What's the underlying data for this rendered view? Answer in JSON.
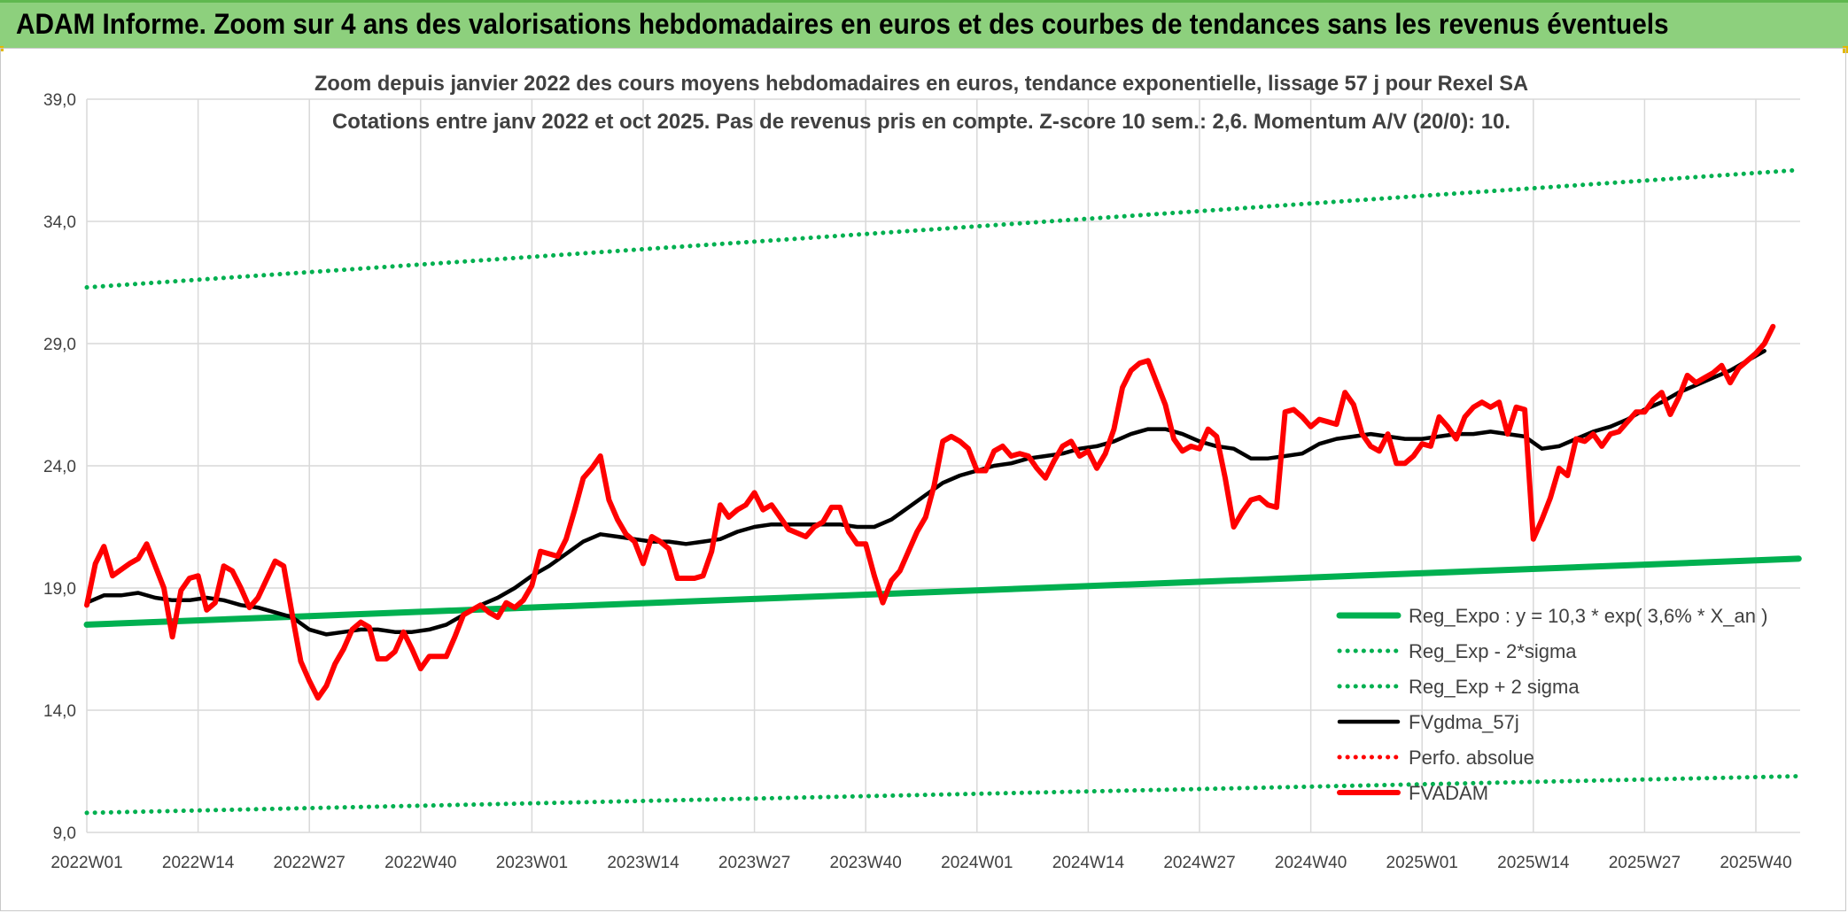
{
  "header": {
    "title": "ADAM Informe. Zoom sur 4 ans des valorisations hebdomadaires en euros et des courbes de tendances sans les revenus éventuels"
  },
  "colors": {
    "banner": "#8dd07d",
    "trend": "#00b050",
    "smooth": "#000000",
    "price": "#ff0000",
    "grid": "#d9d9d9",
    "text": "#404040"
  },
  "chart_data": {
    "type": "line",
    "title": "Zoom depuis janvier 2022 des cours moyens hebdomadaires en euros, tendance exponentielle, lissage 57 j pour Rexel SA",
    "subtitle": "Cotations entre janv 2022 et oct 2025. Pas de revenus pris en compte. Z-score 10 sem.: 2,6. Momentum A/V (20/0): 10.",
    "xlabel": "",
    "ylabel": "",
    "x_unit": "week index (0 = 2022W01)",
    "xlim": [
      0,
      195
    ],
    "ylim": [
      9,
      39
    ],
    "y_ticks": [
      "9,0",
      "14,0",
      "19,0",
      "24,0",
      "29,0",
      "34,0",
      "39,0"
    ],
    "y_tick_values": [
      9,
      14,
      19,
      24,
      29,
      34,
      39
    ],
    "x_tick_labels": [
      "2022W01",
      "2022W14",
      "2022W27",
      "2022W40",
      "2023W01",
      "2023W14",
      "2023W27",
      "2023W40",
      "2024W01",
      "2024W14",
      "2024W27",
      "2024W40",
      "2025W01",
      "2025W14",
      "2025W27",
      "2025W40"
    ],
    "x_tick_values": [
      0,
      13,
      26,
      39,
      52,
      65,
      78,
      91,
      104,
      117,
      130,
      143,
      156,
      169,
      182,
      195
    ],
    "grid": true,
    "legend_position": "bottom-right",
    "series": [
      {
        "name": "Reg_Expo : y = 10,3 * exp( 3,6% *  X_an )",
        "style": "solid-thick",
        "color": "#00b050",
        "points": [
          [
            0,
            17.5
          ],
          [
            200,
            20.2
          ]
        ]
      },
      {
        "name": "Reg_Exp - 2*sigma",
        "style": "dotted",
        "color": "#00b050",
        "points": [
          [
            0,
            9.8
          ],
          [
            200,
            11.3
          ]
        ]
      },
      {
        "name": "Reg_Exp + 2 sigma",
        "style": "dotted",
        "color": "#00b050",
        "points": [
          [
            0,
            31.3
          ],
          [
            200,
            36.1
          ]
        ]
      },
      {
        "name": "FVgdma_57j",
        "style": "solid",
        "color": "#000000",
        "points": [
          [
            0,
            18.4
          ],
          [
            2,
            18.7
          ],
          [
            4,
            18.7
          ],
          [
            6,
            18.8
          ],
          [
            8,
            18.6
          ],
          [
            10,
            18.5
          ],
          [
            12,
            18.5
          ],
          [
            14,
            18.6
          ],
          [
            16,
            18.5
          ],
          [
            18,
            18.3
          ],
          [
            20,
            18.2
          ],
          [
            22,
            18.0
          ],
          [
            24,
            17.8
          ],
          [
            26,
            17.3
          ],
          [
            28,
            17.1
          ],
          [
            30,
            17.2
          ],
          [
            32,
            17.3
          ],
          [
            34,
            17.3
          ],
          [
            36,
            17.2
          ],
          [
            38,
            17.2
          ],
          [
            40,
            17.3
          ],
          [
            42,
            17.5
          ],
          [
            44,
            17.9
          ],
          [
            46,
            18.3
          ],
          [
            48,
            18.6
          ],
          [
            50,
            19.0
          ],
          [
            52,
            19.5
          ],
          [
            54,
            19.9
          ],
          [
            56,
            20.4
          ],
          [
            58,
            20.9
          ],
          [
            60,
            21.2
          ],
          [
            62,
            21.1
          ],
          [
            64,
            21.0
          ],
          [
            66,
            20.9
          ],
          [
            68,
            20.9
          ],
          [
            70,
            20.8
          ],
          [
            72,
            20.9
          ],
          [
            74,
            21.0
          ],
          [
            76,
            21.3
          ],
          [
            78,
            21.5
          ],
          [
            80,
            21.6
          ],
          [
            82,
            21.6
          ],
          [
            84,
            21.6
          ],
          [
            86,
            21.6
          ],
          [
            88,
            21.6
          ],
          [
            90,
            21.5
          ],
          [
            92,
            21.5
          ],
          [
            94,
            21.8
          ],
          [
            96,
            22.3
          ],
          [
            98,
            22.8
          ],
          [
            100,
            23.3
          ],
          [
            102,
            23.6
          ],
          [
            104,
            23.8
          ],
          [
            106,
            24.0
          ],
          [
            108,
            24.1
          ],
          [
            110,
            24.3
          ],
          [
            112,
            24.4
          ],
          [
            114,
            24.5
          ],
          [
            116,
            24.7
          ],
          [
            118,
            24.8
          ],
          [
            120,
            25.0
          ],
          [
            122,
            25.3
          ],
          [
            124,
            25.5
          ],
          [
            126,
            25.5
          ],
          [
            128,
            25.3
          ],
          [
            130,
            25.0
          ],
          [
            132,
            24.8
          ],
          [
            134,
            24.7
          ],
          [
            136,
            24.3
          ],
          [
            138,
            24.3
          ],
          [
            140,
            24.4
          ],
          [
            142,
            24.5
          ],
          [
            144,
            24.9
          ],
          [
            146,
            25.1
          ],
          [
            148,
            25.2
          ],
          [
            150,
            25.3
          ],
          [
            152,
            25.2
          ],
          [
            154,
            25.1
          ],
          [
            156,
            25.1
          ],
          [
            158,
            25.2
          ],
          [
            160,
            25.3
          ],
          [
            162,
            25.3
          ],
          [
            164,
            25.4
          ],
          [
            166,
            25.3
          ],
          [
            168,
            25.2
          ],
          [
            170,
            24.7
          ],
          [
            172,
            24.8
          ],
          [
            174,
            25.1
          ],
          [
            176,
            25.4
          ],
          [
            178,
            25.6
          ],
          [
            180,
            25.9
          ],
          [
            182,
            26.3
          ],
          [
            184,
            26.6
          ],
          [
            186,
            27.0
          ],
          [
            188,
            27.3
          ],
          [
            190,
            27.6
          ],
          [
            192,
            27.9
          ],
          [
            194,
            28.3
          ],
          [
            196,
            28.7
          ]
        ]
      },
      {
        "name": "Perfo. absolue",
        "style": "dotted",
        "color": "#ff0000",
        "points": []
      },
      {
        "name": "FVADAM",
        "style": "solid-thick",
        "color": "#ff0000",
        "points": [
          [
            0,
            18.3
          ],
          [
            1,
            20.0
          ],
          [
            2,
            20.7
          ],
          [
            3,
            19.5
          ],
          [
            5,
            20.0
          ],
          [
            6,
            20.2
          ],
          [
            7,
            20.8
          ],
          [
            9,
            19.0
          ],
          [
            10,
            17.0
          ],
          [
            11,
            18.9
          ],
          [
            12,
            19.4
          ],
          [
            13,
            19.5
          ],
          [
            14,
            18.1
          ],
          [
            15,
            18.4
          ],
          [
            16,
            19.9
          ],
          [
            17,
            19.7
          ],
          [
            18,
            19.0
          ],
          [
            19,
            18.2
          ],
          [
            20,
            18.6
          ],
          [
            22,
            20.1
          ],
          [
            23,
            19.9
          ],
          [
            24,
            17.9
          ],
          [
            25,
            16.0
          ],
          [
            26,
            15.2
          ],
          [
            27,
            14.5
          ],
          [
            28,
            15.0
          ],
          [
            29,
            15.9
          ],
          [
            30,
            16.5
          ],
          [
            31,
            17.3
          ],
          [
            32,
            17.6
          ],
          [
            33,
            17.4
          ],
          [
            34,
            16.1
          ],
          [
            35,
            16.1
          ],
          [
            36,
            16.4
          ],
          [
            37,
            17.2
          ],
          [
            38,
            16.5
          ],
          [
            39,
            15.7
          ],
          [
            40,
            16.2
          ],
          [
            42,
            16.2
          ],
          [
            43,
            17.0
          ],
          [
            44,
            17.9
          ],
          [
            46,
            18.3
          ],
          [
            47,
            18.0
          ],
          [
            48,
            17.8
          ],
          [
            49,
            18.4
          ],
          [
            50,
            18.2
          ],
          [
            51,
            18.5
          ],
          [
            52,
            19.1
          ],
          [
            53,
            20.5
          ],
          [
            55,
            20.3
          ],
          [
            56,
            21.0
          ],
          [
            57,
            22.2
          ],
          [
            58,
            23.5
          ],
          [
            59,
            23.9
          ],
          [
            60,
            24.4
          ],
          [
            61,
            22.6
          ],
          [
            62,
            21.8
          ],
          [
            63,
            21.2
          ],
          [
            64,
            20.9
          ],
          [
            65,
            20.0
          ],
          [
            66,
            21.1
          ],
          [
            67,
            20.9
          ],
          [
            68,
            20.6
          ],
          [
            69,
            19.4
          ],
          [
            71,
            19.4
          ],
          [
            72,
            19.5
          ],
          [
            73,
            20.5
          ],
          [
            74,
            22.4
          ],
          [
            75,
            21.9
          ],
          [
            76,
            22.2
          ],
          [
            77,
            22.4
          ],
          [
            78,
            22.9
          ],
          [
            79,
            22.2
          ],
          [
            80,
            22.4
          ],
          [
            81,
            21.9
          ],
          [
            82,
            21.4
          ],
          [
            84,
            21.1
          ],
          [
            85,
            21.5
          ],
          [
            86,
            21.7
          ],
          [
            87,
            22.3
          ],
          [
            88,
            22.3
          ],
          [
            89,
            21.3
          ],
          [
            90,
            20.8
          ],
          [
            91,
            20.8
          ],
          [
            92,
            19.5
          ],
          [
            93,
            18.4
          ],
          [
            94,
            19.3
          ],
          [
            95,
            19.7
          ],
          [
            96,
            20.5
          ],
          [
            97,
            21.3
          ],
          [
            98,
            21.9
          ],
          [
            99,
            23.2
          ],
          [
            100,
            25.0
          ],
          [
            101,
            25.2
          ],
          [
            102,
            25.0
          ],
          [
            103,
            24.7
          ],
          [
            104,
            23.8
          ],
          [
            105,
            23.8
          ],
          [
            106,
            24.6
          ],
          [
            107,
            24.8
          ],
          [
            108,
            24.4
          ],
          [
            109,
            24.5
          ],
          [
            110,
            24.4
          ],
          [
            111,
            23.9
          ],
          [
            112,
            23.5
          ],
          [
            113,
            24.2
          ],
          [
            114,
            24.8
          ],
          [
            115,
            25.0
          ],
          [
            116,
            24.4
          ],
          [
            117,
            24.6
          ],
          [
            118,
            23.9
          ],
          [
            119,
            24.5
          ],
          [
            120,
            25.5
          ],
          [
            121,
            27.2
          ],
          [
            122,
            27.9
          ],
          [
            123,
            28.2
          ],
          [
            124,
            28.3
          ],
          [
            125,
            27.4
          ],
          [
            126,
            26.5
          ],
          [
            127,
            25.1
          ],
          [
            128,
            24.6
          ],
          [
            129,
            24.8
          ],
          [
            130,
            24.7
          ],
          [
            131,
            25.5
          ],
          [
            132,
            25.2
          ],
          [
            133,
            23.5
          ],
          [
            134,
            21.5
          ],
          [
            135,
            22.1
          ],
          [
            136,
            22.6
          ],
          [
            137,
            22.7
          ],
          [
            138,
            22.4
          ],
          [
            139,
            22.3
          ],
          [
            140,
            26.2
          ],
          [
            141,
            26.3
          ],
          [
            142,
            26.0
          ],
          [
            143,
            25.6
          ],
          [
            144,
            25.9
          ],
          [
            145,
            25.8
          ],
          [
            146,
            25.7
          ],
          [
            147,
            27.0
          ],
          [
            148,
            26.5
          ],
          [
            149,
            25.3
          ],
          [
            150,
            24.8
          ],
          [
            151,
            24.6
          ],
          [
            152,
            25.3
          ],
          [
            153,
            24.1
          ],
          [
            154,
            24.1
          ],
          [
            155,
            24.4
          ],
          [
            156,
            24.9
          ],
          [
            157,
            24.8
          ],
          [
            158,
            26.0
          ],
          [
            159,
            25.6
          ],
          [
            160,
            25.1
          ],
          [
            161,
            26.0
          ],
          [
            162,
            26.4
          ],
          [
            163,
            26.6
          ],
          [
            164,
            26.4
          ],
          [
            165,
            26.6
          ],
          [
            166,
            25.3
          ],
          [
            167,
            26.4
          ],
          [
            168,
            26.3
          ],
          [
            169,
            21.0
          ],
          [
            170,
            21.8
          ],
          [
            171,
            22.7
          ],
          [
            172,
            23.9
          ],
          [
            173,
            23.6
          ],
          [
            174,
            25.1
          ],
          [
            175,
            25.0
          ],
          [
            176,
            25.3
          ],
          [
            177,
            24.8
          ],
          [
            178,
            25.3
          ],
          [
            179,
            25.4
          ],
          [
            180,
            25.8
          ],
          [
            181,
            26.2
          ],
          [
            182,
            26.2
          ],
          [
            183,
            26.7
          ],
          [
            184,
            27.0
          ],
          [
            185,
            26.1
          ],
          [
            186,
            26.8
          ],
          [
            187,
            27.7
          ],
          [
            188,
            27.4
          ],
          [
            189,
            27.6
          ],
          [
            190,
            27.8
          ],
          [
            191,
            28.1
          ],
          [
            192,
            27.4
          ],
          [
            193,
            28.0
          ],
          [
            194,
            28.3
          ],
          [
            195,
            28.6
          ],
          [
            196,
            29.0
          ],
          [
            197,
            29.7
          ]
        ]
      }
    ]
  }
}
